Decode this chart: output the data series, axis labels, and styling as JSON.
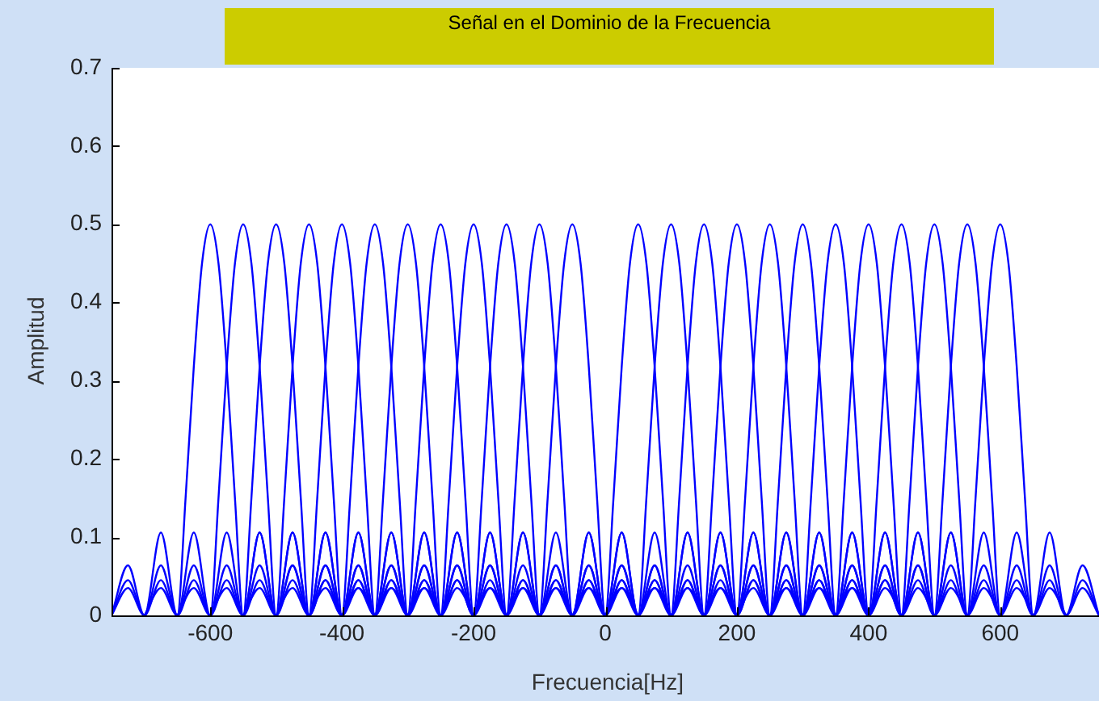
{
  "chart_data": {
    "type": "line",
    "title": "Señal en el Dominio de la Frecuencia",
    "xlabel": "Frecuencia[Hz]",
    "ylabel": "Amplitud",
    "xlim": [
      -750,
      750
    ],
    "ylim": [
      0,
      0.7
    ],
    "xticks": [
      -600,
      -400,
      -200,
      0,
      200,
      400,
      600
    ],
    "yticks": [
      0,
      0.1,
      0.2,
      0.3,
      0.4,
      0.5,
      0.6,
      0.7
    ],
    "grid": false,
    "legend": false,
    "marker": "none",
    "line_style": "solid",
    "series": [
      {
        "color": "#0000ff",
        "x": [
          -750,
          -725,
          -700,
          -675,
          -650,
          -637.5,
          -625,
          -612.5,
          -600,
          -587.5,
          -575,
          -562.5,
          -550,
          -525,
          -500,
          -475,
          -450,
          -425,
          -400,
          -375,
          -350
        ],
        "values": [
          0,
          0.064,
          0,
          0.106,
          0,
          0.15,
          0.318,
          0.45,
          0.5,
          0.45,
          0.318,
          0.15,
          0,
          0.106,
          0,
          0.064,
          0,
          0.045,
          0,
          0.035,
          0
        ]
      },
      {
        "color": "#0000ff",
        "x": [
          -750,
          -725,
          -700,
          -675,
          -650,
          -625,
          -600,
          -587.5,
          -575,
          -562.5,
          -550,
          -537.5,
          -525,
          -512.5,
          -500,
          -475,
          -450,
          -425,
          -400,
          -375,
          -350,
          -325,
          -300
        ],
        "values": [
          0,
          0.045,
          0,
          0.064,
          0,
          0.106,
          0,
          0.15,
          0.318,
          0.45,
          0.5,
          0.45,
          0.318,
          0.15,
          0,
          0.106,
          0,
          0.064,
          0,
          0.045,
          0,
          0.035,
          0
        ]
      },
      {
        "color": "#0000ff",
        "x": [
          -750,
          -725,
          -700,
          -675,
          -650,
          -625,
          -600,
          -575,
          -550,
          -537.5,
          -525,
          -512.5,
          -500,
          -487.5,
          -475,
          -462.5,
          -450,
          -425,
          -400,
          -375,
          -350,
          -325,
          -300,
          -275,
          -250
        ],
        "values": [
          0,
          0.035,
          0,
          0.045,
          0,
          0.064,
          0,
          0.106,
          0,
          0.15,
          0.318,
          0.45,
          0.5,
          0.45,
          0.318,
          0.15,
          0,
          0.106,
          0,
          0.064,
          0,
          0.045,
          0,
          0.035,
          0
        ]
      },
      {
        "color": "#0000ff",
        "x": [
          -700,
          -675,
          -650,
          -625,
          -600,
          -575,
          -550,
          -525,
          -500,
          -487.5,
          -475,
          -462.5,
          -450,
          -437.5,
          -425,
          -412.5,
          -400,
          -375,
          -350,
          -325,
          -300,
          -275,
          -250,
          -225,
          -200
        ],
        "values": [
          0,
          0.035,
          0,
          0.045,
          0,
          0.064,
          0,
          0.106,
          0,
          0.15,
          0.318,
          0.45,
          0.5,
          0.45,
          0.318,
          0.15,
          0,
          0.106,
          0,
          0.064,
          0,
          0.045,
          0,
          0.035,
          0
        ]
      },
      {
        "color": "#0000ff",
        "x": [
          -650,
          -625,
          -600,
          -575,
          -550,
          -525,
          -500,
          -475,
          -450,
          -437.5,
          -425,
          -412.5,
          -400,
          -387.5,
          -375,
          -362.5,
          -350,
          -325,
          -300,
          -275,
          -250,
          -225,
          -200,
          -175,
          -150
        ],
        "values": [
          0,
          0.035,
          0,
          0.045,
          0,
          0.064,
          0,
          0.106,
          0,
          0.15,
          0.318,
          0.45,
          0.5,
          0.45,
          0.318,
          0.15,
          0,
          0.106,
          0,
          0.064,
          0,
          0.045,
          0,
          0.035,
          0
        ]
      },
      {
        "color": "#0000ff",
        "x": [
          -600,
          -575,
          -550,
          -525,
          -500,
          -475,
          -450,
          -425,
          -400,
          -387.5,
          -375,
          -362.5,
          -350,
          -337.5,
          -325,
          -312.5,
          -300,
          -275,
          -250,
          -225,
          -200,
          -175,
          -150,
          -125,
          -100
        ],
        "values": [
          0,
          0.035,
          0,
          0.045,
          0,
          0.064,
          0,
          0.106,
          0,
          0.15,
          0.318,
          0.45,
          0.5,
          0.45,
          0.318,
          0.15,
          0,
          0.106,
          0,
          0.064,
          0,
          0.045,
          0,
          0.035,
          0
        ]
      },
      {
        "color": "#0000ff",
        "x": [
          -550,
          -525,
          -500,
          -475,
          -450,
          -425,
          -400,
          -375,
          -350,
          -337.5,
          -325,
          -312.5,
          -300,
          -287.5,
          -275,
          -262.5,
          -250,
          -225,
          -200,
          -175,
          -150,
          -125,
          -100,
          -75,
          -50
        ],
        "values": [
          0,
          0.035,
          0,
          0.045,
          0,
          0.064,
          0,
          0.106,
          0,
          0.15,
          0.318,
          0.45,
          0.5,
          0.45,
          0.318,
          0.15,
          0,
          0.106,
          0,
          0.064,
          0,
          0.045,
          0,
          0.035,
          0
        ]
      },
      {
        "color": "#0000ff",
        "x": [
          -500,
          -475,
          -450,
          -425,
          -400,
          -375,
          -350,
          -325,
          -300,
          -287.5,
          -275,
          -262.5,
          -250,
          -237.5,
          -225,
          -212.5,
          -200,
          -175,
          -150,
          -125,
          -100,
          -75,
          -50,
          -25,
          0
        ],
        "values": [
          0,
          0.035,
          0,
          0.045,
          0,
          0.064,
          0,
          0.106,
          0,
          0.15,
          0.318,
          0.45,
          0.5,
          0.45,
          0.318,
          0.15,
          0,
          0.106,
          0,
          0.064,
          0,
          0.045,
          0,
          0.035,
          0
        ]
      },
      {
        "color": "#0000ff",
        "x": [
          -450,
          -425,
          -400,
          -375,
          -350,
          -325,
          -300,
          -275,
          -250,
          -237.5,
          -225,
          -212.5,
          -200,
          -187.5,
          -175,
          -162.5,
          -150,
          -125,
          -100,
          -75,
          -50,
          -25,
          0,
          25,
          50
        ],
        "values": [
          0,
          0.035,
          0,
          0.045,
          0,
          0.064,
          0,
          0.106,
          0,
          0.15,
          0.318,
          0.45,
          0.5,
          0.45,
          0.318,
          0.15,
          0,
          0.106,
          0,
          0.064,
          0,
          0.045,
          0,
          0.035,
          0
        ]
      },
      {
        "color": "#0000ff",
        "x": [
          -400,
          -375,
          -350,
          -325,
          -300,
          -275,
          -250,
          -225,
          -200,
          -187.5,
          -175,
          -162.5,
          -150,
          -137.5,
          -125,
          -112.5,
          -100,
          -75,
          -50,
          -25,
          0,
          25,
          50,
          75,
          100
        ],
        "values": [
          0,
          0.035,
          0,
          0.045,
          0,
          0.064,
          0,
          0.106,
          0,
          0.15,
          0.318,
          0.45,
          0.5,
          0.45,
          0.318,
          0.15,
          0,
          0.106,
          0,
          0.064,
          0,
          0.045,
          0,
          0.035,
          0
        ]
      },
      {
        "color": "#0000ff",
        "x": [
          -350,
          -325,
          -300,
          -275,
          -250,
          -225,
          -200,
          -175,
          -150,
          -137.5,
          -125,
          -112.5,
          -100,
          -87.5,
          -75,
          -62.5,
          -50,
          -25,
          0,
          25,
          50,
          75,
          100,
          125,
          150
        ],
        "values": [
          0,
          0.035,
          0,
          0.045,
          0,
          0.064,
          0,
          0.106,
          0,
          0.15,
          0.318,
          0.45,
          0.5,
          0.45,
          0.318,
          0.15,
          0,
          0.106,
          0,
          0.064,
          0,
          0.045,
          0,
          0.035,
          0
        ]
      },
      {
        "color": "#0000ff",
        "x": [
          -300,
          -275,
          -250,
          -225,
          -200,
          -175,
          -150,
          -125,
          -100,
          -87.5,
          -75,
          -62.5,
          -50,
          -37.5,
          -25,
          -12.5,
          0,
          25,
          50,
          75,
          100,
          125,
          150,
          175,
          200
        ],
        "values": [
          0,
          0.035,
          0,
          0.045,
          0,
          0.064,
          0,
          0.106,
          0,
          0.15,
          0.318,
          0.45,
          0.5,
          0.45,
          0.318,
          0.15,
          0,
          0.106,
          0,
          0.064,
          0,
          0.045,
          0,
          0.035,
          0
        ]
      },
      {
        "color": "#0000ff",
        "x": [
          -200,
          -175,
          -150,
          -125,
          -100,
          -75,
          -50,
          -25,
          0,
          12.5,
          25,
          37.5,
          50,
          62.5,
          75,
          87.5,
          100,
          125,
          150,
          175,
          200,
          225,
          250,
          275,
          300
        ],
        "values": [
          0,
          0.035,
          0,
          0.045,
          0,
          0.064,
          0,
          0.106,
          0,
          0.15,
          0.318,
          0.45,
          0.5,
          0.45,
          0.318,
          0.15,
          0,
          0.106,
          0,
          0.064,
          0,
          0.045,
          0,
          0.035,
          0
        ]
      },
      {
        "color": "#0000ff",
        "x": [
          -150,
          -125,
          -100,
          -75,
          -50,
          -25,
          0,
          25,
          50,
          62.5,
          75,
          87.5,
          100,
          112.5,
          125,
          137.5,
          150,
          175,
          200,
          225,
          250,
          275,
          300,
          325,
          350
        ],
        "values": [
          0,
          0.035,
          0,
          0.045,
          0,
          0.064,
          0,
          0.106,
          0,
          0.15,
          0.318,
          0.45,
          0.5,
          0.45,
          0.318,
          0.15,
          0,
          0.106,
          0,
          0.064,
          0,
          0.045,
          0,
          0.035,
          0
        ]
      },
      {
        "color": "#0000ff",
        "x": [
          -100,
          -75,
          -50,
          -25,
          0,
          25,
          50,
          75,
          100,
          112.5,
          125,
          137.5,
          150,
          162.5,
          175,
          187.5,
          200,
          225,
          250,
          275,
          300,
          325,
          350,
          375,
          400
        ],
        "values": [
          0,
          0.035,
          0,
          0.045,
          0,
          0.064,
          0,
          0.106,
          0,
          0.15,
          0.318,
          0.45,
          0.5,
          0.45,
          0.318,
          0.15,
          0,
          0.106,
          0,
          0.064,
          0,
          0.045,
          0,
          0.035,
          0
        ]
      },
      {
        "color": "#0000ff",
        "x": [
          -50,
          -25,
          0,
          25,
          50,
          75,
          100,
          125,
          150,
          162.5,
          175,
          187.5,
          200,
          212.5,
          225,
          237.5,
          250,
          275,
          300,
          325,
          350,
          375,
          400,
          425,
          450
        ],
        "values": [
          0,
          0.035,
          0,
          0.045,
          0,
          0.064,
          0,
          0.106,
          0,
          0.15,
          0.318,
          0.45,
          0.5,
          0.45,
          0.318,
          0.15,
          0,
          0.106,
          0,
          0.064,
          0,
          0.045,
          0,
          0.035,
          0
        ]
      },
      {
        "color": "#0000ff",
        "x": [
          0,
          25,
          50,
          75,
          100,
          125,
          150,
          175,
          200,
          212.5,
          225,
          237.5,
          250,
          262.5,
          275,
          287.5,
          300,
          325,
          350,
          375,
          400,
          425,
          450,
          475,
          500
        ],
        "values": [
          0,
          0.035,
          0,
          0.045,
          0,
          0.064,
          0,
          0.106,
          0,
          0.15,
          0.318,
          0.45,
          0.5,
          0.45,
          0.318,
          0.15,
          0,
          0.106,
          0,
          0.064,
          0,
          0.045,
          0,
          0.035,
          0
        ]
      },
      {
        "color": "#0000ff",
        "x": [
          50,
          75,
          100,
          125,
          150,
          175,
          200,
          225,
          250,
          262.5,
          275,
          287.5,
          300,
          312.5,
          325,
          337.5,
          350,
          375,
          400,
          425,
          450,
          475,
          500,
          525,
          550
        ],
        "values": [
          0,
          0.035,
          0,
          0.045,
          0,
          0.064,
          0,
          0.106,
          0,
          0.15,
          0.318,
          0.45,
          0.5,
          0.45,
          0.318,
          0.15,
          0,
          0.106,
          0,
          0.064,
          0,
          0.045,
          0,
          0.035,
          0
        ]
      },
      {
        "color": "#0000ff",
        "x": [
          100,
          125,
          150,
          175,
          200,
          225,
          250,
          275,
          300,
          312.5,
          325,
          337.5,
          350,
          362.5,
          375,
          387.5,
          400,
          425,
          450,
          475,
          500,
          525,
          550,
          575,
          600
        ],
        "values": [
          0,
          0.035,
          0,
          0.045,
          0,
          0.064,
          0,
          0.106,
          0,
          0.15,
          0.318,
          0.45,
          0.5,
          0.45,
          0.318,
          0.15,
          0,
          0.106,
          0,
          0.064,
          0,
          0.045,
          0,
          0.035,
          0
        ]
      },
      {
        "color": "#0000ff",
        "x": [
          150,
          175,
          200,
          225,
          250,
          275,
          300,
          325,
          350,
          362.5,
          375,
          387.5,
          400,
          412.5,
          425,
          437.5,
          450,
          475,
          500,
          525,
          550,
          575,
          600,
          625,
          650
        ],
        "values": [
          0,
          0.035,
          0,
          0.045,
          0,
          0.064,
          0,
          0.106,
          0,
          0.15,
          0.318,
          0.45,
          0.5,
          0.45,
          0.318,
          0.15,
          0,
          0.106,
          0,
          0.064,
          0,
          0.045,
          0,
          0.035,
          0
        ]
      },
      {
        "color": "#0000ff",
        "x": [
          200,
          225,
          250,
          275,
          300,
          325,
          350,
          375,
          400,
          412.5,
          425,
          437.5,
          450,
          462.5,
          475,
          487.5,
          500,
          525,
          550,
          575,
          600,
          625,
          650,
          675,
          700
        ],
        "values": [
          0,
          0.035,
          0,
          0.045,
          0,
          0.064,
          0,
          0.106,
          0,
          0.15,
          0.318,
          0.45,
          0.5,
          0.45,
          0.318,
          0.15,
          0,
          0.106,
          0,
          0.064,
          0,
          0.045,
          0,
          0.035,
          0
        ]
      },
      {
        "color": "#0000ff",
        "x": [
          250,
          275,
          300,
          325,
          350,
          375,
          400,
          425,
          450,
          462.5,
          475,
          487.5,
          500,
          512.5,
          525,
          537.5,
          550,
          575,
          600,
          625,
          650,
          675,
          700,
          725,
          750
        ],
        "values": [
          0,
          0.035,
          0,
          0.045,
          0,
          0.064,
          0,
          0.106,
          0,
          0.15,
          0.318,
          0.45,
          0.5,
          0.45,
          0.318,
          0.15,
          0,
          0.106,
          0,
          0.064,
          0,
          0.045,
          0,
          0.035,
          0
        ]
      },
      {
        "color": "#0000ff",
        "x": [
          300,
          325,
          350,
          375,
          400,
          425,
          450,
          475,
          500,
          512.5,
          525,
          537.5,
          550,
          562.5,
          575,
          587.5,
          600,
          625,
          650,
          675,
          700,
          725,
          750
        ],
        "values": [
          0,
          0.035,
          0,
          0.045,
          0,
          0.064,
          0,
          0.106,
          0,
          0.15,
          0.318,
          0.45,
          0.5,
          0.45,
          0.318,
          0.15,
          0,
          0.106,
          0,
          0.064,
          0,
          0.045,
          0
        ]
      },
      {
        "color": "#0000ff",
        "x": [
          350,
          375,
          400,
          425,
          450,
          475,
          500,
          525,
          550,
          562.5,
          575,
          587.5,
          600,
          612.5,
          625,
          637.5,
          650,
          675,
          700,
          725,
          750
        ],
        "values": [
          0,
          0.035,
          0,
          0.045,
          0,
          0.064,
          0,
          0.106,
          0,
          0.15,
          0.318,
          0.45,
          0.5,
          0.45,
          0.318,
          0.15,
          0,
          0.106,
          0,
          0.064,
          0
        ]
      }
    ]
  }
}
